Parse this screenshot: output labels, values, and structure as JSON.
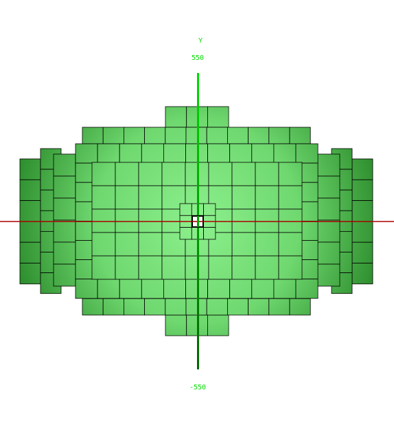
{
  "axis": {
    "y_label": "Y",
    "y_max_label": "550",
    "y_min_label": "-550"
  },
  "colors": {
    "background": "#ffffff",
    "y_axis_top": "#00dd00",
    "y_axis_bottom": "#006600",
    "x_axis": "#aa0000",
    "tile_light": "#8cf08c",
    "tile_dark": "#2e8f2e",
    "tile_stroke": "#000000",
    "label": "#00dd00"
  }
}
